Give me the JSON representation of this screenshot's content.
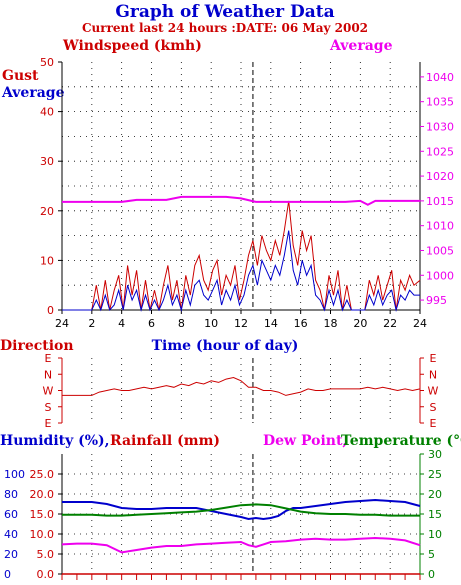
{
  "title": "Graph of Weather Data",
  "subtitle": "Current last 24 hours :DATE: 06 May 2002",
  "colors": {
    "red": "#cc0000",
    "blue": "#0000cc",
    "magenta": "#ee00ee",
    "green": "#008000"
  },
  "chart_data": [
    {
      "type": "line",
      "labels": {
        "windspeed": "Windspeed (kmh)",
        "average_right": "Average",
        "gust": "Gust",
        "average_left": "Average",
        "xlabel": "Time (hour of day)"
      },
      "x_ticks": [
        "24",
        "2",
        "4",
        "6",
        "8",
        "10",
        "12",
        "14",
        "16",
        "18",
        "20",
        "22",
        "24"
      ],
      "y_left_ticks": [
        "0",
        "10",
        "20",
        "30",
        "40",
        "50"
      ],
      "y_left_range": [
        0,
        50
      ],
      "y_right_ticks": [
        "995",
        "1000",
        "1005",
        "1010",
        "1015",
        "1020",
        "1025",
        "1030",
        "1035",
        "1040"
      ],
      "y_right_range": [
        993,
        1043
      ],
      "x_range": [
        0,
        24
      ],
      "grid": "dotted",
      "series": [
        {
          "name": "Gust",
          "color": "red",
          "axis": "left",
          "x": [
            0,
            2,
            2.3,
            2.6,
            2.9,
            3.2,
            3.5,
            3.8,
            4.1,
            4.4,
            4.7,
            5,
            5.3,
            5.6,
            5.9,
            6.2,
            6.5,
            6.8,
            7.1,
            7.4,
            7.7,
            8,
            8.3,
            8.6,
            8.9,
            9.2,
            9.5,
            9.8,
            10.1,
            10.4,
            10.7,
            11,
            11.3,
            11.6,
            11.9,
            12.2,
            12.5,
            12.8,
            13.1,
            13.4,
            13.7,
            14,
            14.3,
            14.6,
            14.9,
            15.2,
            15.5,
            15.8,
            16.1,
            16.4,
            16.7,
            17,
            17.3,
            17.6,
            17.9,
            18.2,
            18.5,
            18.8,
            19.1,
            19.4,
            19.7,
            20,
            20.3,
            20.6,
            20.9,
            21.2,
            21.5,
            21.8,
            22.1,
            22.4,
            22.7,
            23,
            23.3,
            23.6,
            24
          ],
          "values": [
            0,
            0,
            5,
            0,
            6,
            0,
            4,
            7,
            0,
            9,
            3,
            8,
            0,
            6,
            0,
            4,
            0,
            5,
            9,
            2,
            6,
            0,
            7,
            3,
            9,
            11,
            6,
            4,
            8,
            10,
            3,
            7,
            5,
            9,
            2,
            6,
            11,
            14,
            9,
            15,
            12,
            10,
            14,
            11,
            16,
            22,
            13,
            9,
            16,
            12,
            15,
            6,
            4,
            0,
            7,
            3,
            8,
            0,
            5,
            0,
            0,
            0,
            0,
            6,
            3,
            7,
            2,
            5,
            8,
            0,
            6,
            4,
            7,
            5,
            6
          ],
          "note_line": ""
        },
        {
          "name": "Average",
          "color": "blue",
          "axis": "left",
          "x": [
            0,
            2,
            2.3,
            2.6,
            2.9,
            3.2,
            3.5,
            3.8,
            4.1,
            4.4,
            4.7,
            5,
            5.3,
            5.6,
            5.9,
            6.2,
            6.5,
            6.8,
            7.1,
            7.4,
            7.7,
            8,
            8.3,
            8.6,
            8.9,
            9.2,
            9.5,
            9.8,
            10.1,
            10.4,
            10.7,
            11,
            11.3,
            11.6,
            11.9,
            12.2,
            12.5,
            12.8,
            13.1,
            13.4,
            13.7,
            14,
            14.3,
            14.6,
            14.9,
            15.2,
            15.5,
            15.8,
            16.1,
            16.4,
            16.7,
            17,
            17.3,
            17.6,
            17.9,
            18.2,
            18.5,
            18.8,
            19.1,
            19.4,
            19.7,
            20,
            20.3,
            20.6,
            20.9,
            21.2,
            21.5,
            21.8,
            22.1,
            22.4,
            22.7,
            23,
            23.3,
            23.6,
            24
          ],
          "values": [
            0,
            0,
            2,
            0,
            3,
            0,
            1,
            4,
            0,
            5,
            2,
            4,
            0,
            3,
            0,
            2,
            0,
            2,
            5,
            1,
            3,
            0,
            4,
            1,
            5,
            6,
            3,
            2,
            4,
            6,
            1,
            4,
            2,
            5,
            1,
            3,
            7,
            9,
            5,
            10,
            8,
            6,
            9,
            7,
            11,
            16,
            8,
            5,
            10,
            7,
            9,
            3,
            2,
            0,
            4,
            1,
            4,
            0,
            2,
            0,
            0,
            0,
            0,
            3,
            1,
            4,
            1,
            3,
            4,
            0,
            3,
            2,
            4,
            3,
            3
          ]
        },
        {
          "name": "Average",
          "color": "magenta",
          "axis": "right",
          "x": [
            0,
            2,
            4,
            5,
            6,
            7,
            8,
            9,
            10,
            11,
            12,
            13,
            14,
            15,
            16,
            17,
            18,
            19,
            20,
            20.5,
            21,
            22,
            23,
            24
          ],
          "values": [
            1014.8,
            1014.8,
            1014.8,
            1015.2,
            1015.2,
            1015.2,
            1015.8,
            1015.8,
            1015.8,
            1015.8,
            1015.5,
            1014.8,
            1014.8,
            1014.8,
            1014.8,
            1014.8,
            1014.8,
            1014.8,
            1015.0,
            1014.2,
            1015.0,
            1015.0,
            1015.0,
            1015.0
          ]
        }
      ]
    },
    {
      "type": "line",
      "label": "Direction",
      "xlabel": "Time (hour of day)",
      "y_ticks": [
        "E",
        "N",
        "W",
        "S",
        "E"
      ],
      "series": [
        {
          "color": "red",
          "x": [
            0,
            1,
            2,
            2.5,
            3,
            3.5,
            4,
            4.5,
            5,
            5.5,
            6,
            6.5,
            7,
            7.5,
            8,
            8.5,
            9,
            9.5,
            10,
            10.5,
            11,
            11.5,
            12,
            12.5,
            13,
            13.5,
            14,
            14.5,
            15,
            15.5,
            16,
            16.5,
            17,
            17.5,
            18,
            18.5,
            19,
            19.5,
            20,
            20.5,
            21,
            21.5,
            22,
            22.5,
            23,
            23.5,
            24
          ],
          "values": [
            2.3,
            2.3,
            2.3,
            2.1,
            2.0,
            1.9,
            2.0,
            2.0,
            1.9,
            1.8,
            1.9,
            1.8,
            1.7,
            1.8,
            1.6,
            1.7,
            1.5,
            1.6,
            1.4,
            1.5,
            1.3,
            1.2,
            1.4,
            1.8,
            1.8,
            2.0,
            2.0,
            2.1,
            2.3,
            2.2,
            2.1,
            1.9,
            2.0,
            2.0,
            1.9,
            1.9,
            1.9,
            1.9,
            1.9,
            1.8,
            1.9,
            1.8,
            1.9,
            2.0,
            1.9,
            2.0,
            1.9
          ]
        }
      ]
    },
    {
      "type": "line",
      "labels": {
        "humidity": "Humidity (%),",
        "rainfall": "Rainfall (mm)",
        "dew_point": "Dew Point,",
        "temperature": "Temperature (°C)"
      },
      "y_left_outer_ticks": [
        "0",
        "20",
        "40",
        "60",
        "80",
        "100"
      ],
      "y_left_inner_ticks": [
        "0.0",
        "5.0",
        "10.0",
        "15.0",
        "20.0",
        "25.0"
      ],
      "y_right_ticks": [
        "0",
        "5",
        "10",
        "15",
        "20",
        "25",
        "30"
      ],
      "y_right_range": [
        0,
        30
      ],
      "series": [
        {
          "name": "Humidity",
          "color": "blue",
          "axis": "percent",
          "x": [
            0,
            1,
            2,
            3,
            4,
            5,
            6,
            7,
            8,
            9,
            10,
            11,
            12,
            12.5,
            13,
            13.5,
            14,
            14.5,
            15,
            15.5,
            16,
            17,
            18,
            19,
            20,
            21,
            22,
            23,
            24
          ],
          "values": [
            72,
            72,
            72,
            70,
            66,
            65,
            65,
            66,
            66,
            66,
            63,
            60,
            57,
            55,
            56,
            55,
            56,
            58,
            63,
            66,
            66,
            68,
            70,
            72,
            73,
            74,
            73,
            72,
            68
          ]
        },
        {
          "name": "Temperature",
          "color": "green",
          "axis": "right",
          "x": [
            0,
            1,
            2,
            3,
            4,
            5,
            6,
            7,
            8,
            9,
            10,
            11,
            12,
            13,
            14,
            15,
            16,
            17,
            18,
            19,
            20,
            21,
            22,
            23,
            24
          ],
          "values": [
            14.8,
            14.8,
            14.8,
            14.6,
            14.6,
            14.8,
            15.0,
            15.2,
            15.4,
            15.6,
            16.0,
            16.6,
            17.2,
            17.4,
            17.2,
            16.4,
            15.6,
            15.2,
            15.0,
            15.0,
            14.8,
            14.8,
            14.6,
            14.6,
            14.6
          ]
        },
        {
          "name": "Dew Point",
          "color": "magenta",
          "axis": "right",
          "x": [
            0,
            1,
            2,
            3,
            4,
            5,
            6,
            7,
            8,
            9,
            10,
            11,
            12,
            12.5,
            13,
            13.5,
            14,
            15,
            16,
            17,
            18,
            19,
            20,
            21,
            22,
            23,
            24
          ],
          "values": [
            7.4,
            7.6,
            7.6,
            7.2,
            5.4,
            6.0,
            6.6,
            7.0,
            7.0,
            7.4,
            7.6,
            7.8,
            8.0,
            7.2,
            6.8,
            7.4,
            8.0,
            8.2,
            8.6,
            8.8,
            8.6,
            8.6,
            8.8,
            9.0,
            8.8,
            8.4,
            7.2
          ]
        }
      ]
    }
  ]
}
